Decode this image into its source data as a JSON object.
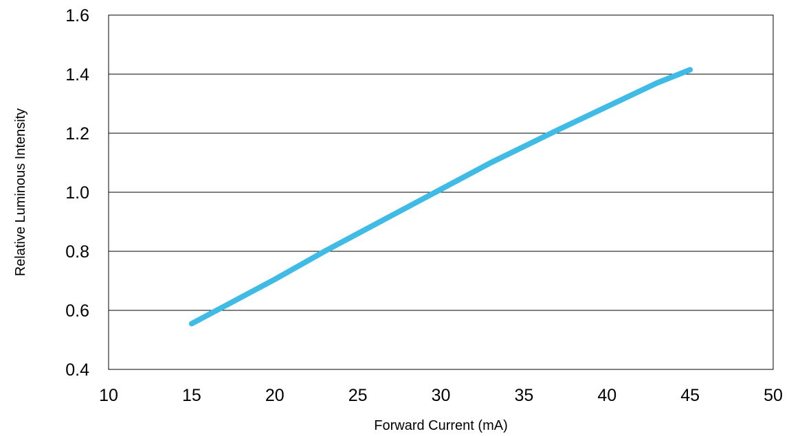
{
  "chart_data": {
    "type": "line",
    "title": "",
    "xlabel": "Forward Current (mA)",
    "ylabel": "Relative Luminous Intensity",
    "xlim": [
      10,
      50
    ],
    "ylim": [
      0.4,
      1.6
    ],
    "xticks": [
      "10",
      "15",
      "20",
      "25",
      "30",
      "35",
      "40",
      "45",
      "50"
    ],
    "yticks": [
      "0.4",
      "0.6",
      "0.8",
      "1.0",
      "1.2",
      "1.4",
      "1.6"
    ],
    "grid": "horizontal",
    "legend": "none",
    "series": [
      {
        "color": "#3fbbe6",
        "x": [
          15,
          17,
          20,
          23,
          25,
          27,
          30,
          33,
          35,
          37,
          40,
          43,
          45
        ],
        "y": [
          0.555,
          0.615,
          0.705,
          0.8,
          0.86,
          0.92,
          1.01,
          1.1,
          1.155,
          1.21,
          1.29,
          1.37,
          1.415
        ]
      }
    ]
  }
}
